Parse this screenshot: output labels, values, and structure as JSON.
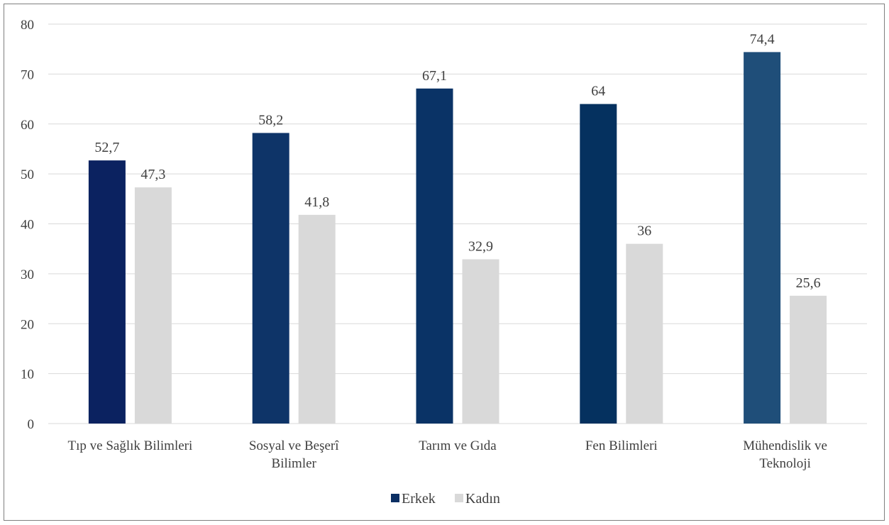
{
  "chart_data": {
    "type": "bar",
    "categories": [
      [
        "Tıp ve Sağlık Bilimleri"
      ],
      [
        "Sosyal ve Beşerî",
        "Bilimler"
      ],
      [
        "Tarım ve Gıda"
      ],
      [
        "Fen Bilimleri"
      ],
      [
        "Mühendislik ve",
        "Teknoloji"
      ]
    ],
    "series": [
      {
        "name": "Erkek",
        "values": [
          52.7,
          58.2,
          67.1,
          64,
          74.4
        ],
        "value_labels": [
          "52,7",
          "58,2",
          "67,1",
          "64",
          "74,4"
        ],
        "colors": [
          "#0b2260",
          "#0e3468",
          "#0a3366",
          "#05315f",
          "#1f4e79"
        ]
      },
      {
        "name": "Kadın",
        "values": [
          47.3,
          41.8,
          32.9,
          36,
          25.6
        ],
        "value_labels": [
          "47,3",
          "41,8",
          "32,9",
          "36",
          "25,6"
        ],
        "colors": [
          "#d9d9d9",
          "#d9d9d9",
          "#d9d9d9",
          "#d9d9d9",
          "#d9d9d9"
        ]
      }
    ],
    "ylim": [
      0,
      80
    ],
    "yticks": [
      0,
      10,
      20,
      30,
      40,
      50,
      60,
      70,
      80
    ],
    "grid": true,
    "legend": {
      "position": "bottom",
      "items": [
        {
          "label": "Erkek",
          "color": "#0b2f63"
        },
        {
          "label": "Kadın",
          "color": "#d9d9d9"
        }
      ]
    }
  }
}
